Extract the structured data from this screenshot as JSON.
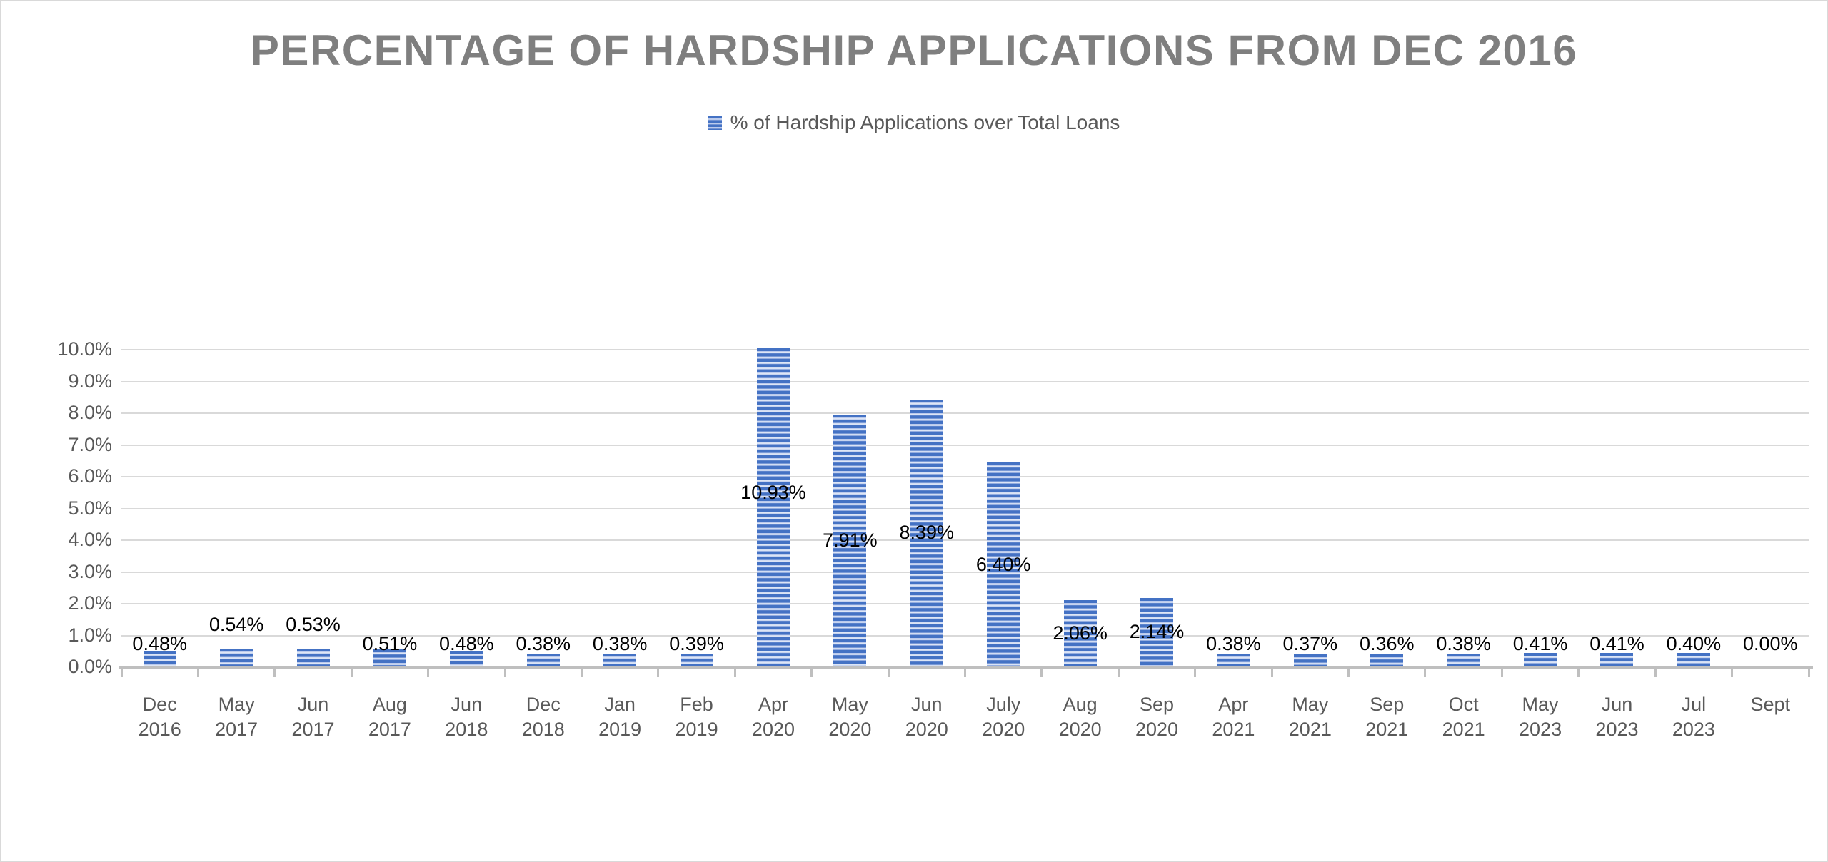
{
  "title": "PERCENTAGE OF HARDSHIP APPLICATIONS FROM DEC 2016",
  "legend": {
    "marker_icon": "striped-blue-square",
    "label": "% of Hardship Applications over Total Loans"
  },
  "colors": {
    "bar_base": "#4472C4",
    "bar_stripe_light": "#DDE6F6",
    "title_text": "#7F7F7F",
    "axis_text": "#595959",
    "data_label_text": "#000000",
    "gridline": "#D9D9D9",
    "axis_line": "#BFBFBF"
  },
  "chart_data": {
    "type": "bar",
    "title": "PERCENTAGE OF HARDSHIP APPLICATIONS FROM DEC 2016",
    "series": [
      {
        "name": "% of Hardship Applications over Total Loans",
        "values": [
          0.48,
          0.54,
          0.53,
          0.51,
          0.48,
          0.38,
          0.38,
          0.39,
          10.93,
          7.91,
          8.39,
          6.4,
          2.06,
          2.14,
          0.38,
          0.37,
          0.36,
          0.38,
          0.41,
          0.41,
          0.4,
          0.0
        ]
      }
    ],
    "categories": [
      "Dec 2016",
      "May 2017",
      "Jun 2017",
      "Aug 2017",
      "Jun 2018",
      "Dec 2018",
      "Jan 2019",
      "Feb 2019",
      "Apr 2020",
      "May 2020",
      "Jun 2020",
      "July 2020",
      "Aug 2020",
      "Sep 2020",
      "Apr 2021",
      "May 2021",
      "Sep 2021",
      "Oct 2021",
      "May 2023",
      "Jun 2023",
      "Jul 2023",
      "Sept"
    ],
    "category_lines": [
      [
        "Dec",
        "2016"
      ],
      [
        "May",
        "2017"
      ],
      [
        "Jun",
        "2017"
      ],
      [
        "Aug",
        "2017"
      ],
      [
        "Jun",
        "2018"
      ],
      [
        "Dec",
        "2018"
      ],
      [
        "Jan",
        "2019"
      ],
      [
        "Feb",
        "2019"
      ],
      [
        "Apr",
        "2020"
      ],
      [
        "May",
        "2020"
      ],
      [
        "Jun",
        "2020"
      ],
      [
        "July",
        "2020"
      ],
      [
        "Aug",
        "2020"
      ],
      [
        "Sep",
        "2020"
      ],
      [
        "Apr",
        "2021"
      ],
      [
        "May",
        "2021"
      ],
      [
        "Sep",
        "2021"
      ],
      [
        "Oct",
        "2021"
      ],
      [
        "May",
        "2023"
      ],
      [
        "Jun",
        "2023"
      ],
      [
        "Jul",
        "2023"
      ],
      [
        "Sept",
        ""
      ]
    ],
    "data_labels": [
      "0.48%",
      "0.54%",
      "0.53%",
      "0.51%",
      "0.48%",
      "0.38%",
      "0.38%",
      "0.39%",
      "10.93%",
      "7.91%",
      "8.39%",
      "6.40%",
      "2.06%",
      "2.14%",
      "0.38%",
      "0.37%",
      "0.36%",
      "0.38%",
      "0.41%",
      "0.41%",
      "0.40%",
      "0.00%"
    ],
    "label_placement": [
      "outside",
      "outside-raised",
      "outside-raised",
      "outside",
      "outside",
      "outside",
      "outside",
      "outside",
      "inside-center",
      "inside-center",
      "inside-center",
      "inside-center",
      "inside-center",
      "inside-center",
      "outside",
      "outside",
      "outside",
      "outside",
      "outside",
      "outside",
      "outside",
      "outside"
    ],
    "y_ticks": [
      "0.0%",
      "1.0%",
      "2.0%",
      "3.0%",
      "4.0%",
      "5.0%",
      "6.0%",
      "7.0%",
      "8.0%",
      "9.0%",
      "10.0%"
    ],
    "ylim": [
      0,
      10
    ],
    "y_tick_step": 1,
    "grid": true,
    "bar_fill_pattern": "horizontal-stripes",
    "legend_position": "top-center",
    "xlabel": "",
    "ylabel": ""
  }
}
